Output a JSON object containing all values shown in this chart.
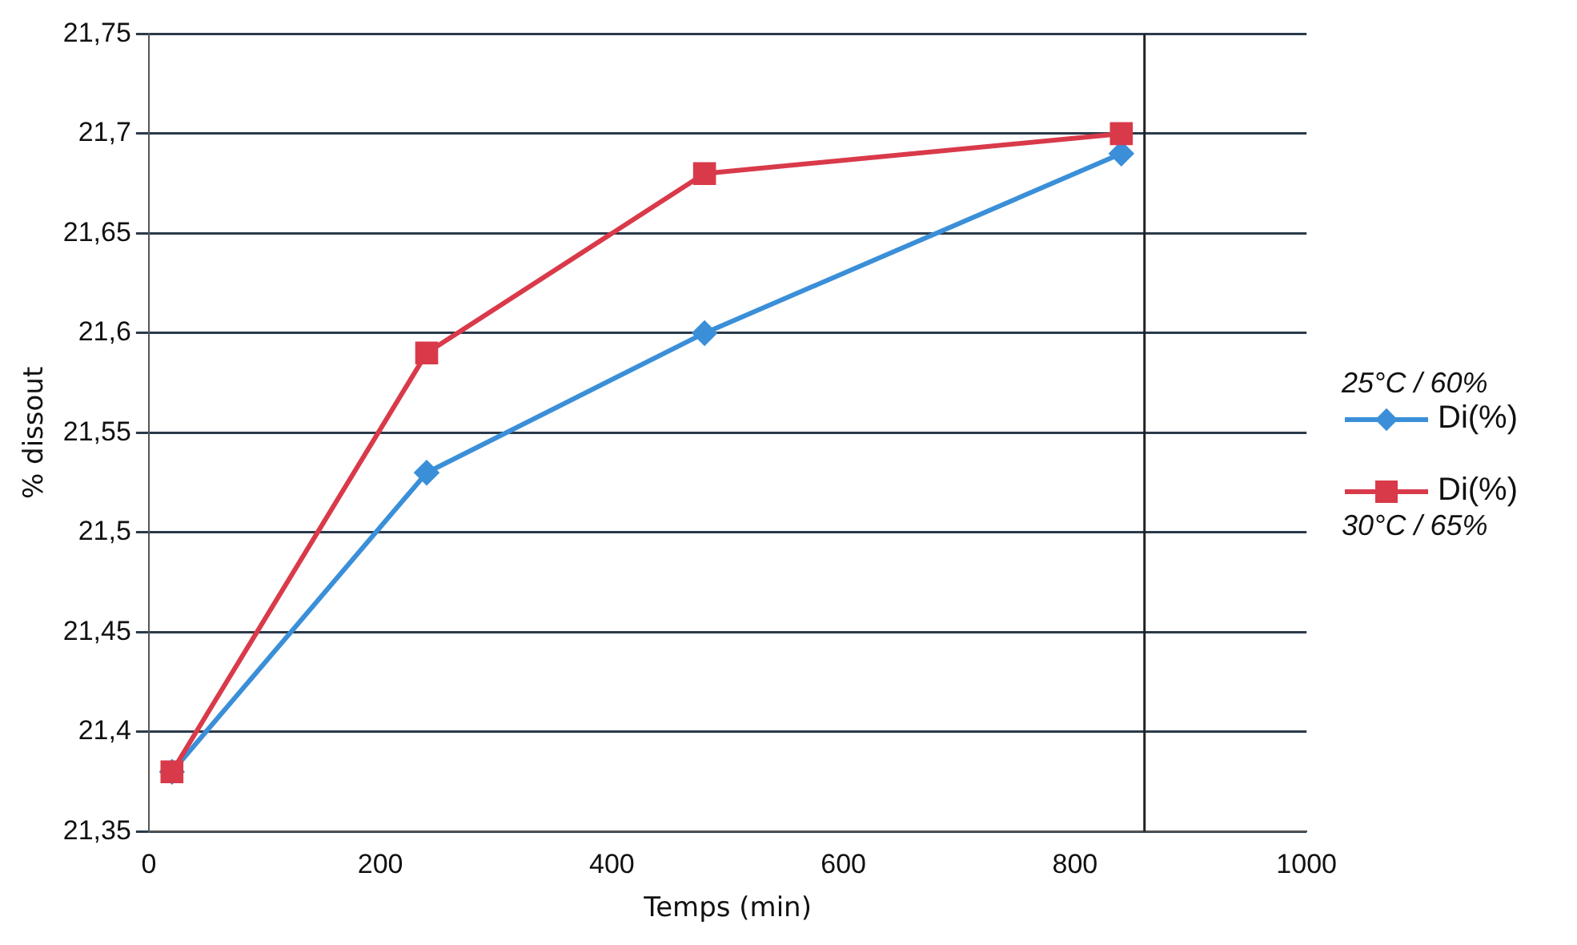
{
  "chart_data": {
    "type": "line",
    "xlabel": "Temps (min)",
    "ylabel": "% dissout",
    "x": [
      20,
      240,
      480,
      840
    ],
    "series": [
      {
        "name": "Di(%)",
        "color": "#3a8fd8",
        "marker": "diamond",
        "values": [
          21.38,
          21.53,
          21.6,
          21.69
        ]
      },
      {
        "name": "Di(%)",
        "color": "#d93a4a",
        "marker": "square",
        "values": [
          21.38,
          21.59,
          21.68,
          21.7
        ]
      }
    ],
    "xlim": [
      0,
      1000
    ],
    "xticks": [
      0,
      200,
      400,
      600,
      800,
      1000
    ],
    "ylim": [
      21.35,
      21.75
    ],
    "yticks": [
      {
        "value": 21.35,
        "label": "21,35"
      },
      {
        "value": 21.4,
        "label": "21,4"
      },
      {
        "value": 21.45,
        "label": "21,45"
      },
      {
        "value": 21.5,
        "label": "21,5"
      },
      {
        "value": 21.55,
        "label": "21,55"
      },
      {
        "value": 21.6,
        "label": "21,6"
      },
      {
        "value": 21.65,
        "label": "21,65"
      },
      {
        "value": 21.7,
        "label": "21,7"
      },
      {
        "value": 21.75,
        "label": "21,75"
      }
    ],
    "ref_lines": [
      {
        "axis": "x",
        "value": 860,
        "color": "#222222"
      }
    ],
    "grid": "y",
    "legend": "right",
    "annotations": [
      "25°C / 60%",
      "30°C / 65%"
    ]
  }
}
